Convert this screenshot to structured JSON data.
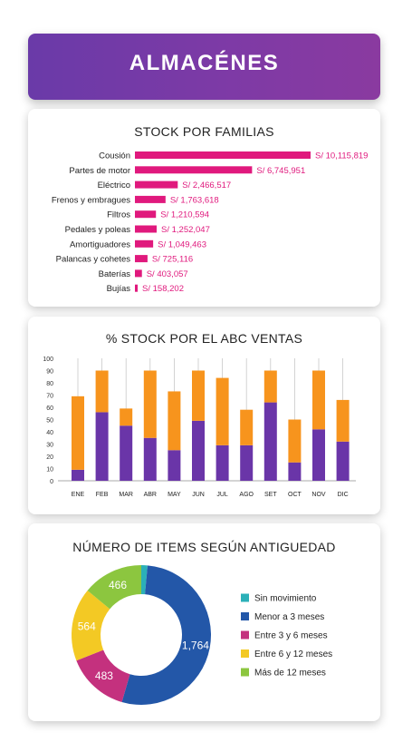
{
  "header": {
    "title": "ALMACÉNES"
  },
  "stock_familias": {
    "title": "STOCK POR FAMILIAS"
  },
  "abc_ventas": {
    "title": "% STOCK POR EL ABC VENTAS"
  },
  "antiguedad": {
    "title": "NÚMERO DE ITEMS SEGÚN ANTIGUEDAD"
  },
  "colors": {
    "header": "#7a3aa6",
    "familias_bar": "#e0197d",
    "abc_bottom": "#6a35a8",
    "abc_top": "#f7941d",
    "sin_movimiento": "#2bb0b8",
    "menor_3": "#2357a8",
    "entre_3_6": "#c4317e",
    "entre_6_12": "#f3c924",
    "mas_12": "#8cc63f"
  },
  "chart_data": [
    {
      "type": "bar",
      "orientation": "horizontal",
      "title": "STOCK POR FAMILIAS",
      "categories": [
        "Cousión",
        "Partes de motor",
        "Eléctrico",
        "Frenos y embragues",
        "Filtros",
        "Pedales y poleas",
        "Amortiguadores",
        "Palancas y cohetes",
        "Baterías",
        "Bujías"
      ],
      "values": [
        10115819,
        6745951,
        2466517,
        1763618,
        1210594,
        1252047,
        1049463,
        725116,
        403057,
        158202
      ],
      "labels": [
        "S/ 10,115,819",
        "S/ 6,745,951",
        "S/ 2,466,517",
        "S/ 1,763,618",
        "S/ 1,210,594",
        "S/ 1,252,047",
        "S/ 1,049,463",
        "S/ 725,116",
        "S/ 403,057",
        "S/ 158,202"
      ]
    },
    {
      "type": "bar",
      "stacked": true,
      "title": "% STOCK POR EL ABC VENTAS",
      "categories": [
        "ENE",
        "FEB",
        "MAR",
        "ABR",
        "MAY",
        "JUN",
        "JUL",
        "AGO",
        "SET",
        "OCT",
        "NOV",
        "DIC"
      ],
      "series": [
        {
          "values": [
            9,
            56,
            45,
            35,
            25,
            49,
            29,
            29,
            64,
            15,
            42,
            32
          ]
        },
        {
          "values": [
            60,
            34,
            14,
            55,
            48,
            41,
            55,
            29,
            26,
            35,
            48,
            34
          ]
        }
      ],
      "ylim": [
        0,
        100
      ],
      "yticks": [
        0,
        10,
        20,
        30,
        40,
        50,
        60,
        70,
        80,
        90,
        100
      ],
      "grid": false
    },
    {
      "type": "pie",
      "donut": true,
      "title": "NÚMERO DE ITEMS SEGÚN ANTIGUEDAD",
      "legend_position": "right",
      "series": [
        {
          "name": "Sin movimiento",
          "value": 48,
          "label": ""
        },
        {
          "name": "Menor a 3 meses",
          "value": 1764,
          "label": "1,764"
        },
        {
          "name": "Entre 3 y 6 meses",
          "value": 483,
          "label": "483"
        },
        {
          "name": "Entre 6 y 12 meses",
          "value": 564,
          "label": "564"
        },
        {
          "name": "Más de 12 meses",
          "value": 466,
          "label": "466"
        }
      ]
    }
  ]
}
